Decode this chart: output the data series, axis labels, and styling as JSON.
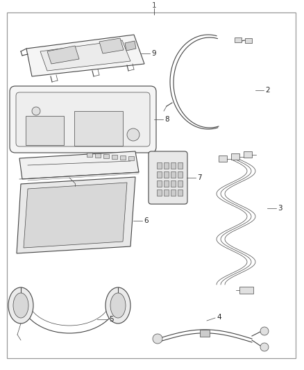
{
  "bg_color": "#ffffff",
  "border_color": "#aaaaaa",
  "line_color": "#444444",
  "label_color": "#222222",
  "fig_width": 4.38,
  "fig_height": 5.33,
  "dpi": 100
}
